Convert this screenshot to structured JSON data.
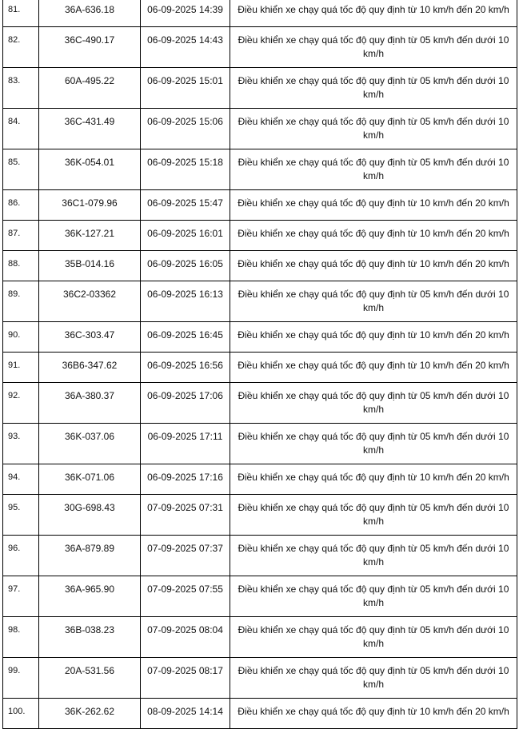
{
  "table": {
    "rows": [
      {
        "no": "81.",
        "plate": "36A-636.18",
        "time": "06-09-2025 14:39",
        "violation": "Điều khiển xe chạy quá tốc độ quy định từ 10 km/h đến 20 km/h"
      },
      {
        "no": "82.",
        "plate": "36C-490.17",
        "time": "06-09-2025 14:43",
        "violation": "Điều khiển xe chạy quá tốc độ quy định từ 05 km/h đến dưới 10 km/h"
      },
      {
        "no": "83.",
        "plate": "60A-495.22",
        "time": "06-09-2025 15:01",
        "violation": "Điều khiển xe chạy quá tốc độ quy định từ 05 km/h đến dưới 10 km/h"
      },
      {
        "no": "84.",
        "plate": "36C-431.49",
        "time": "06-09-2025 15:06",
        "violation": "Điều khiển xe chạy quá tốc độ quy định từ 05 km/h đến dưới 10 km/h"
      },
      {
        "no": "85.",
        "plate": "36K-054.01",
        "time": "06-09-2025 15:18",
        "violation": "Điều khiển xe chạy quá tốc độ quy định từ 05 km/h đến dưới 10 km/h"
      },
      {
        "no": "86.",
        "plate": "36C1-079.96",
        "time": "06-09-2025 15:47",
        "violation": "Điều khiển xe chạy quá tốc độ quy định từ 10 km/h đến 20 km/h"
      },
      {
        "no": "87.",
        "plate": "36K-127.21",
        "time": "06-09-2025 16:01",
        "violation": "Điều khiển xe chạy quá tốc độ quy định từ 10 km/h đến 20 km/h"
      },
      {
        "no": "88.",
        "plate": "35B-014.16",
        "time": "06-09-2025 16:05",
        "violation": "Điều khiển xe chạy quá tốc độ quy định từ 10 km/h đến 20 km/h"
      },
      {
        "no": "89.",
        "plate": "36C2-03362",
        "time": "06-09-2025 16:13",
        "violation": "Điều khiển xe chạy quá tốc độ quy định từ 05 km/h đến dưới 10 km/h"
      },
      {
        "no": "90.",
        "plate": "36C-303.47",
        "time": "06-09-2025 16:45",
        "violation": "Điều khiển xe chạy quá tốc độ quy định từ 10 km/h đến 20 km/h"
      },
      {
        "no": "91.",
        "plate": "36B6-347.62",
        "time": "06-09-2025 16:56",
        "violation": "Điều khiển xe chạy quá tốc độ quy định từ 10 km/h đến 20 km/h"
      },
      {
        "no": "92.",
        "plate": "36A-380.37",
        "time": "06-09-2025 17:06",
        "violation": "Điều khiển xe chạy quá tốc độ quy định từ 05 km/h đến dưới 10 km/h"
      },
      {
        "no": "93.",
        "plate": "36K-037.06",
        "time": "06-09-2025 17:11",
        "violation": "Điều khiển xe chạy quá tốc độ quy định từ 05 km/h đến dưới 10 km/h"
      },
      {
        "no": "94.",
        "plate": "36K-071.06",
        "time": "06-09-2025 17:16",
        "violation": "Điều khiển xe chạy quá tốc độ quy định từ 10 km/h đến 20 km/h"
      },
      {
        "no": "95.",
        "plate": "30G-698.43",
        "time": "07-09-2025 07:31",
        "violation": "Điều khiển xe chạy quá tốc độ quy định từ 05 km/h đến dưới 10 km/h"
      },
      {
        "no": "96.",
        "plate": "36A-879.89",
        "time": "07-09-2025 07:37",
        "violation": "Điều khiển xe chạy quá tốc độ quy định từ 05 km/h đến dưới 10 km/h"
      },
      {
        "no": "97.",
        "plate": "36A-965.90",
        "time": "07-09-2025 07:55",
        "violation": "Điều khiển xe chạy quá tốc độ quy định từ 05 km/h đến dưới 10 km/h"
      },
      {
        "no": "98.",
        "plate": "36B-038.23",
        "time": "07-09-2025 08:04",
        "violation": "Điều khiển xe chạy quá tốc độ quy định từ 05 km/h đến dưới 10 km/h"
      },
      {
        "no": "99.",
        "plate": "20A-531.56",
        "time": "07-09-2025 08:17",
        "violation": "Điều khiển xe chạy quá tốc độ quy định từ 05 km/h đến dưới 10 km/h"
      },
      {
        "no": "100.",
        "plate": "36K-262.62",
        "time": "08-09-2025 14:14",
        "violation": "Điều khiển xe chạy quá tốc độ quy định từ 10 km/h đến 20 km/h"
      }
    ]
  }
}
